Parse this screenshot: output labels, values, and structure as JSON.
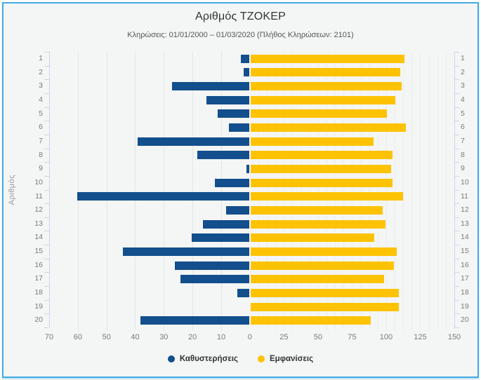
{
  "widget": {
    "border_color": "#45abdf",
    "background_color": "#f4f5f5"
  },
  "chart_data": {
    "type": "bar",
    "orientation": "horizontal-diverging",
    "title": "Αριθμός ΤΖΟΚΕΡ",
    "subtitle": "Κληρώσεις: 01/01/2000 – 01/03/2020 (Πλήθος Κληρώσεων: 2101)",
    "ylabel": "Αριθμός",
    "categories": [
      "1",
      "2",
      "3",
      "4",
      "5",
      "6",
      "7",
      "8",
      "9",
      "10",
      "11",
      "12",
      "13",
      "14",
      "15",
      "16",
      "17",
      "18",
      "19",
      "20"
    ],
    "series": [
      {
        "name": "Καθυστερήσεις",
        "color": "#124f8c",
        "direction": "left",
        "axis_max": 70,
        "values": [
          3,
          2,
          27,
          15,
          11,
          7,
          39,
          18,
          1,
          12,
          60,
          8,
          16,
          20,
          44,
          26,
          24,
          4,
          0,
          38
        ]
      },
      {
        "name": "Εμφανίσεις",
        "color": "#fdc303",
        "direction": "right",
        "axis_max": 150,
        "values": [
          113,
          110,
          111,
          106,
          100,
          114,
          90,
          104,
          103,
          104,
          112,
          97,
          99,
          91,
          107,
          105,
          98,
          109,
          109,
          88
        ]
      }
    ],
    "left_axis_ticks": [
      70,
      60,
      50,
      40,
      30,
      20,
      10,
      0
    ],
    "right_axis_ticks": [
      25,
      50,
      75,
      100,
      125,
      150
    ],
    "grid": true,
    "legend_position": "bottom",
    "category_axis_sides": "both"
  }
}
